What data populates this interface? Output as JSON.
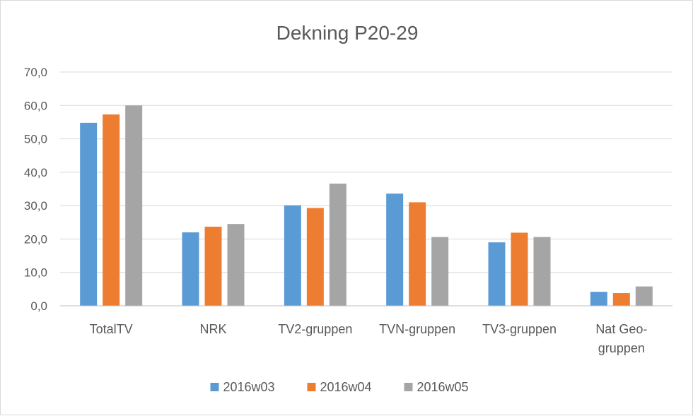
{
  "chart_data": {
    "type": "bar",
    "title": "Dekning P20-29",
    "categories": [
      [
        "TotalTV"
      ],
      [
        "NRK"
      ],
      [
        "TV2-gruppen"
      ],
      [
        "TVN-gruppen"
      ],
      [
        "TV3-gruppen"
      ],
      [
        "Nat Geo-",
        "gruppen"
      ]
    ],
    "series": [
      {
        "name": "2016w03",
        "color": "#5b9bd5",
        "values": [
          54.8,
          22.0,
          30.1,
          33.6,
          19.0,
          4.2
        ]
      },
      {
        "name": "2016w04",
        "color": "#ed7d31",
        "values": [
          57.3,
          23.7,
          29.3,
          31.0,
          21.9,
          3.8
        ]
      },
      {
        "name": "2016w05",
        "color": "#a5a5a5",
        "values": [
          60.0,
          24.5,
          36.6,
          20.6,
          20.6,
          5.8
        ]
      }
    ],
    "ylim": [
      0,
      70
    ],
    "yticks": [
      "0,0",
      "10,0",
      "20,0",
      "30,0",
      "40,0",
      "50,0",
      "60,0",
      "70,0"
    ],
    "xlabel": "",
    "ylabel": "",
    "grid": true,
    "legend_position": "bottom"
  }
}
